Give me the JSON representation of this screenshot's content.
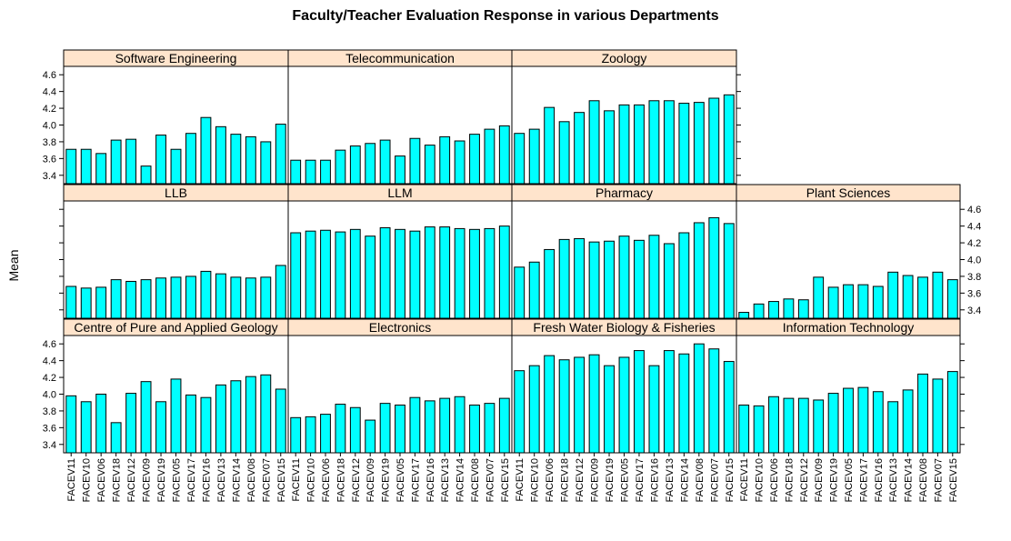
{
  "chart_data": {
    "type": "bar",
    "title": "Faculty/Teacher Evaluation Response in various Departments",
    "xlabel": "",
    "ylabel": "Mean",
    "ylim": [
      3.3,
      4.7
    ],
    "yticks": [
      "3.4",
      "3.6",
      "3.8",
      "4.0",
      "4.2",
      "4.4",
      "4.6"
    ],
    "grid": false,
    "bar_color": "#00ffff",
    "strip_color": "#ffe4cc",
    "categories": [
      "FACEV11",
      "FACEV10",
      "FACEV06",
      "FACEV18",
      "FACEV12",
      "FACEV09",
      "FACEV19",
      "FACEV05",
      "FACEV17",
      "FACEV16",
      "FACEV13",
      "FACEV14",
      "FACEV08",
      "FACEV07",
      "FACEV15"
    ],
    "panels": [
      {
        "name": "Software Engineering",
        "values": [
          3.71,
          3.71,
          3.66,
          3.82,
          3.83,
          3.51,
          3.88,
          3.71,
          3.9,
          4.09,
          3.98,
          3.89,
          3.86,
          3.8,
          4.01
        ]
      },
      {
        "name": "Telecommunication",
        "values": [
          3.58,
          3.58,
          3.58,
          3.7,
          3.75,
          3.78,
          3.82,
          3.63,
          3.84,
          3.76,
          3.86,
          3.81,
          3.89,
          3.95,
          3.99
        ]
      },
      {
        "name": "Zoology",
        "values": [
          3.9,
          3.95,
          4.21,
          4.04,
          4.15,
          4.29,
          4.17,
          4.24,
          4.24,
          4.29,
          4.29,
          4.26,
          4.27,
          4.32,
          4.36
        ]
      },
      {
        "name": "LLB",
        "values": [
          3.68,
          3.66,
          3.67,
          3.76,
          3.74,
          3.76,
          3.78,
          3.79,
          3.8,
          3.86,
          3.83,
          3.79,
          3.78,
          3.79,
          3.93
        ]
      },
      {
        "name": "LLM",
        "values": [
          4.32,
          4.34,
          4.35,
          4.33,
          4.36,
          4.28,
          4.38,
          4.36,
          4.34,
          4.39,
          4.39,
          4.37,
          4.36,
          4.37,
          4.4
        ]
      },
      {
        "name": "Pharmacy",
        "values": [
          3.91,
          3.97,
          4.12,
          4.24,
          4.25,
          4.21,
          4.22,
          4.28,
          4.23,
          4.29,
          4.19,
          4.32,
          4.44,
          4.5,
          4.43
        ]
      },
      {
        "name": "Plant Sciences",
        "values": [
          3.37,
          3.47,
          3.5,
          3.53,
          3.52,
          3.79,
          3.67,
          3.7,
          3.7,
          3.68,
          3.85,
          3.81,
          3.79,
          3.85,
          3.76
        ]
      },
      {
        "name": "Centre of Pure and Applied Geology",
        "values": [
          3.98,
          3.91,
          4.0,
          3.66,
          4.01,
          4.15,
          3.91,
          4.18,
          3.99,
          3.96,
          4.11,
          4.16,
          4.21,
          4.23,
          4.06
        ]
      },
      {
        "name": "Electronics",
        "values": [
          3.72,
          3.73,
          3.76,
          3.88,
          3.84,
          3.69,
          3.89,
          3.87,
          3.96,
          3.92,
          3.95,
          3.97,
          3.87,
          3.89,
          3.95
        ]
      },
      {
        "name": "Fresh Water Biology & Fisheries",
        "values": [
          4.28,
          4.34,
          4.46,
          4.41,
          4.44,
          4.47,
          4.34,
          4.44,
          4.52,
          4.34,
          4.52,
          4.48,
          4.6,
          4.54,
          4.39
        ]
      },
      {
        "name": "Information Technology",
        "values": [
          3.87,
          3.86,
          3.97,
          3.95,
          3.95,
          3.93,
          4.01,
          4.07,
          4.08,
          4.03,
          3.91,
          4.05,
          4.24,
          4.18,
          4.27
        ]
      }
    ]
  }
}
